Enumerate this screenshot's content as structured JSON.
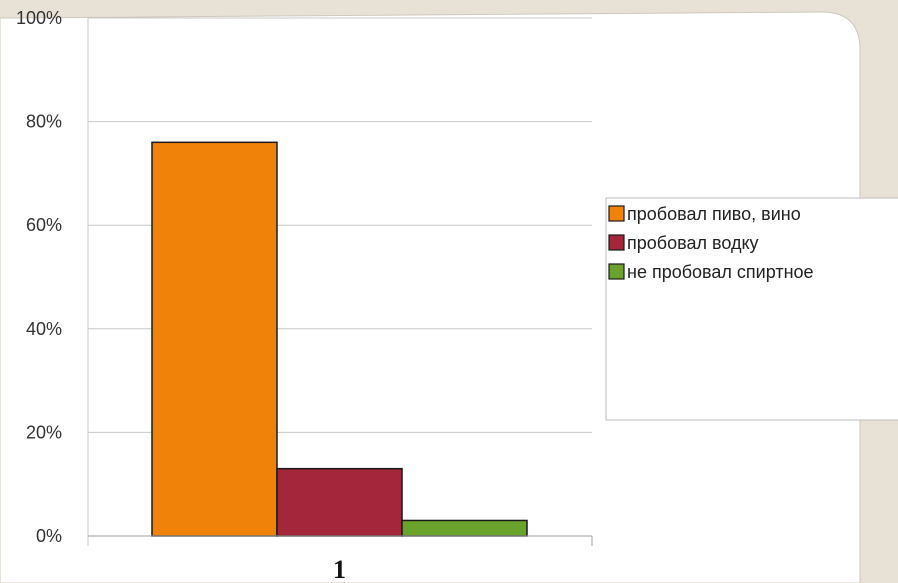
{
  "chart_data": {
    "type": "bar",
    "categories": [
      "1"
    ],
    "series": [
      {
        "name": "пробовал пиво, вино",
        "values": [
          76
        ],
        "color": "#f0820a"
      },
      {
        "name": "пробовал водку",
        "values": [
          13
        ],
        "color": "#a3263a"
      },
      {
        "name": "не пробовал спиртное",
        "values": [
          3
        ],
        "color": "#6aa32c"
      }
    ],
    "ylim": [
      0,
      100
    ],
    "y_ticks": [
      0,
      20,
      40,
      60,
      80,
      100
    ],
    "y_tick_labels": [
      "0%",
      "20%",
      "40%",
      "60%",
      "80%",
      "100%"
    ],
    "grid": true,
    "legend_position": "right"
  },
  "colors": {
    "background": "#e8e1d6",
    "panel": "#ffffff",
    "gridline": "#c8c8c8",
    "bar_border": "#1a1a1a"
  }
}
